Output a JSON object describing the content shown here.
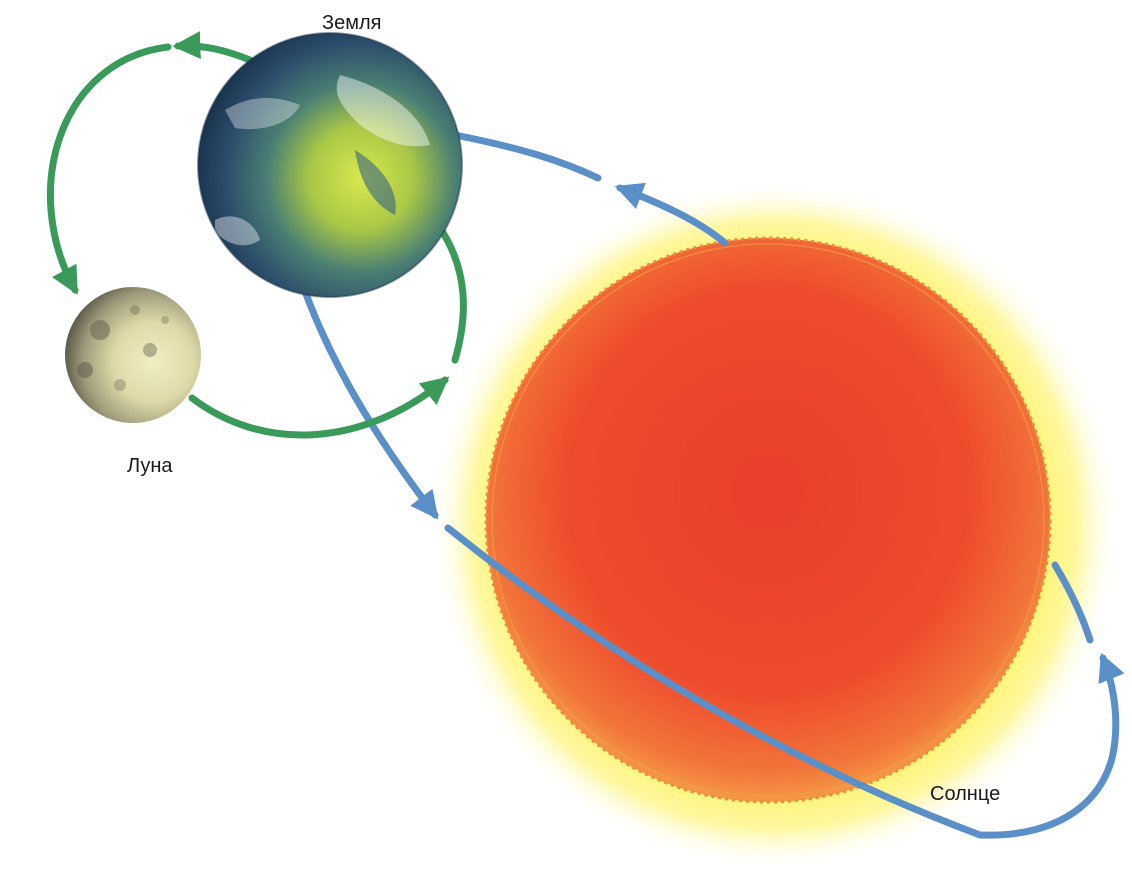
{
  "labels": {
    "earth": "Земля",
    "moon": "Луна",
    "sun": "Солнце"
  },
  "colors": {
    "background": "#ffffff",
    "sun_glow": "#fff24a",
    "sun_core": "#ef4a2a",
    "sun_edge": "#f0833a",
    "earth_ocean": "#2c4f6e",
    "earth_land": "#cfe04a",
    "moon_surface": "#e9e6b6",
    "moon_orbit_arrow": "#3a9a5a",
    "earth_orbit_arrow": "#5b8fc8"
  },
  "icons": {
    "earth": "earth-globe-icon",
    "moon": "moon-icon",
    "sun": "sun-icon"
  }
}
